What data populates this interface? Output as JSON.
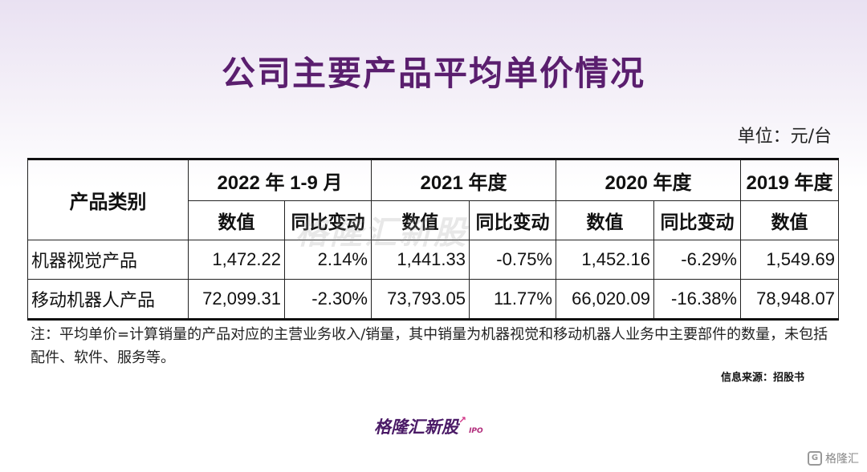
{
  "title": "公司主要产品平均单价情况",
  "unit": "单位：元/台",
  "table": {
    "category_header": "产品类别",
    "periods": [
      "2022 年 1-9 月",
      "2021 年度",
      "2020 年度",
      "2019 年度"
    ],
    "sub_value": "数值",
    "sub_change": "同比变动",
    "rows": [
      {
        "label": "机器视觉产品",
        "cells": [
          "1,472.22",
          "2.14%",
          "1,441.33",
          "-0.75%",
          "1,452.16",
          "-6.29%",
          "1,549.69"
        ]
      },
      {
        "label": "移动机器人产品",
        "cells": [
          "72,099.31",
          "-2.30%",
          "73,793.05",
          "11.77%",
          "66,020.09",
          "-16.38%",
          "78,948.07"
        ]
      }
    ]
  },
  "note": "注：平均单价=计算销量的产品对应的主营业务收入/销量，其中销量为机器视觉和移动机器人业务中主要部件的数量，未包括配件、软件、服务等。",
  "source": "信息来源：招股书",
  "watermark": "格隆汇新股",
  "brand": {
    "name": "格隆汇新股",
    "suffix": "IPO"
  },
  "corner_logo": "格隆汇"
}
